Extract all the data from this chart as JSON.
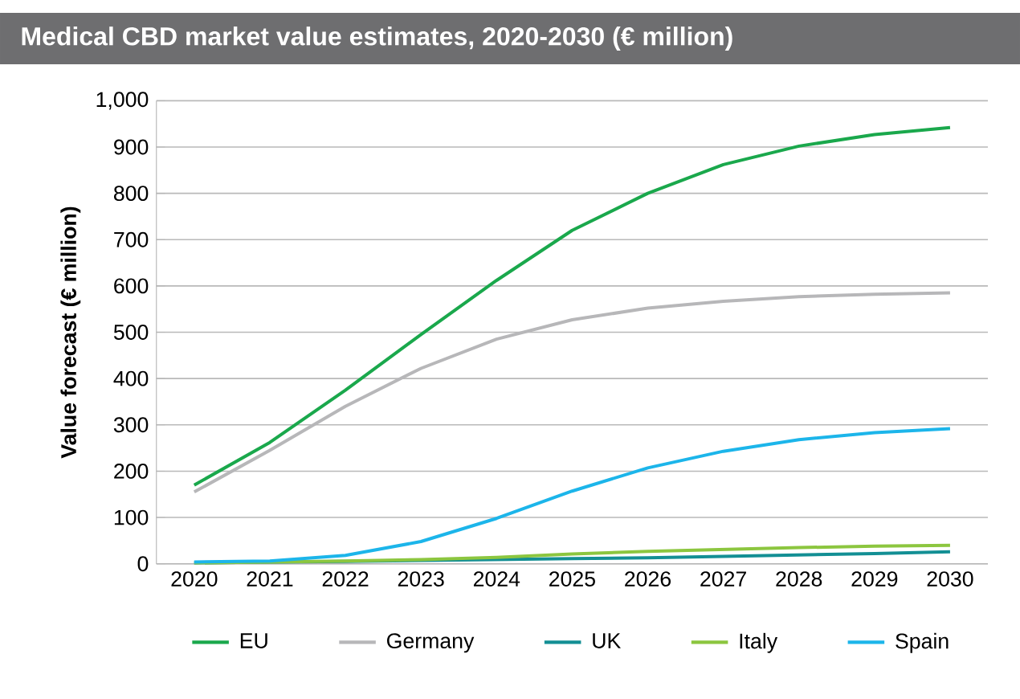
{
  "chart_data": {
    "type": "line",
    "title": "Medical CBD market value estimates, 2020-2030 (€ million)",
    "ylabel": "Value forecast (€ million)",
    "categories": [
      "2020",
      "2021",
      "2022",
      "2023",
      "2024",
      "2025",
      "2026",
      "2027",
      "2028",
      "2029",
      "2030"
    ],
    "series": [
      {
        "name": "EU",
        "color": "#1aa84c",
        "values": [
          170,
          262,
          375,
          495,
          612,
          720,
          800,
          862,
          902,
          927,
          942
        ]
      },
      {
        "name": "Germany",
        "color": "#b7b7b9",
        "values": [
          155,
          245,
          340,
          422,
          485,
          527,
          552,
          567,
          577,
          582,
          585
        ]
      },
      {
        "name": "UK",
        "color": "#138f94",
        "values": [
          2,
          4,
          5,
          7,
          9,
          11,
          13,
          16,
          19,
          22,
          26
        ]
      },
      {
        "name": "Italy",
        "color": "#8cc63f",
        "values": [
          2,
          4,
          6,
          9,
          14,
          21,
          27,
          31,
          35,
          38,
          40
        ]
      },
      {
        "name": "Spain",
        "color": "#1cb5ea",
        "values": [
          4,
          6,
          18,
          48,
          98,
          157,
          207,
          243,
          268,
          283,
          292
        ]
      }
    ],
    "ylim": [
      0,
      1000
    ],
    "yticks": [
      0,
      {
        "value": 100,
        "label": "100"
      },
      200,
      300,
      400,
      500,
      600,
      700,
      800,
      900,
      {
        "value": 1000,
        "label": "1,000"
      }
    ],
    "grid": "y",
    "legend": "bottom",
    "marker": "none",
    "line_style": "solid"
  }
}
